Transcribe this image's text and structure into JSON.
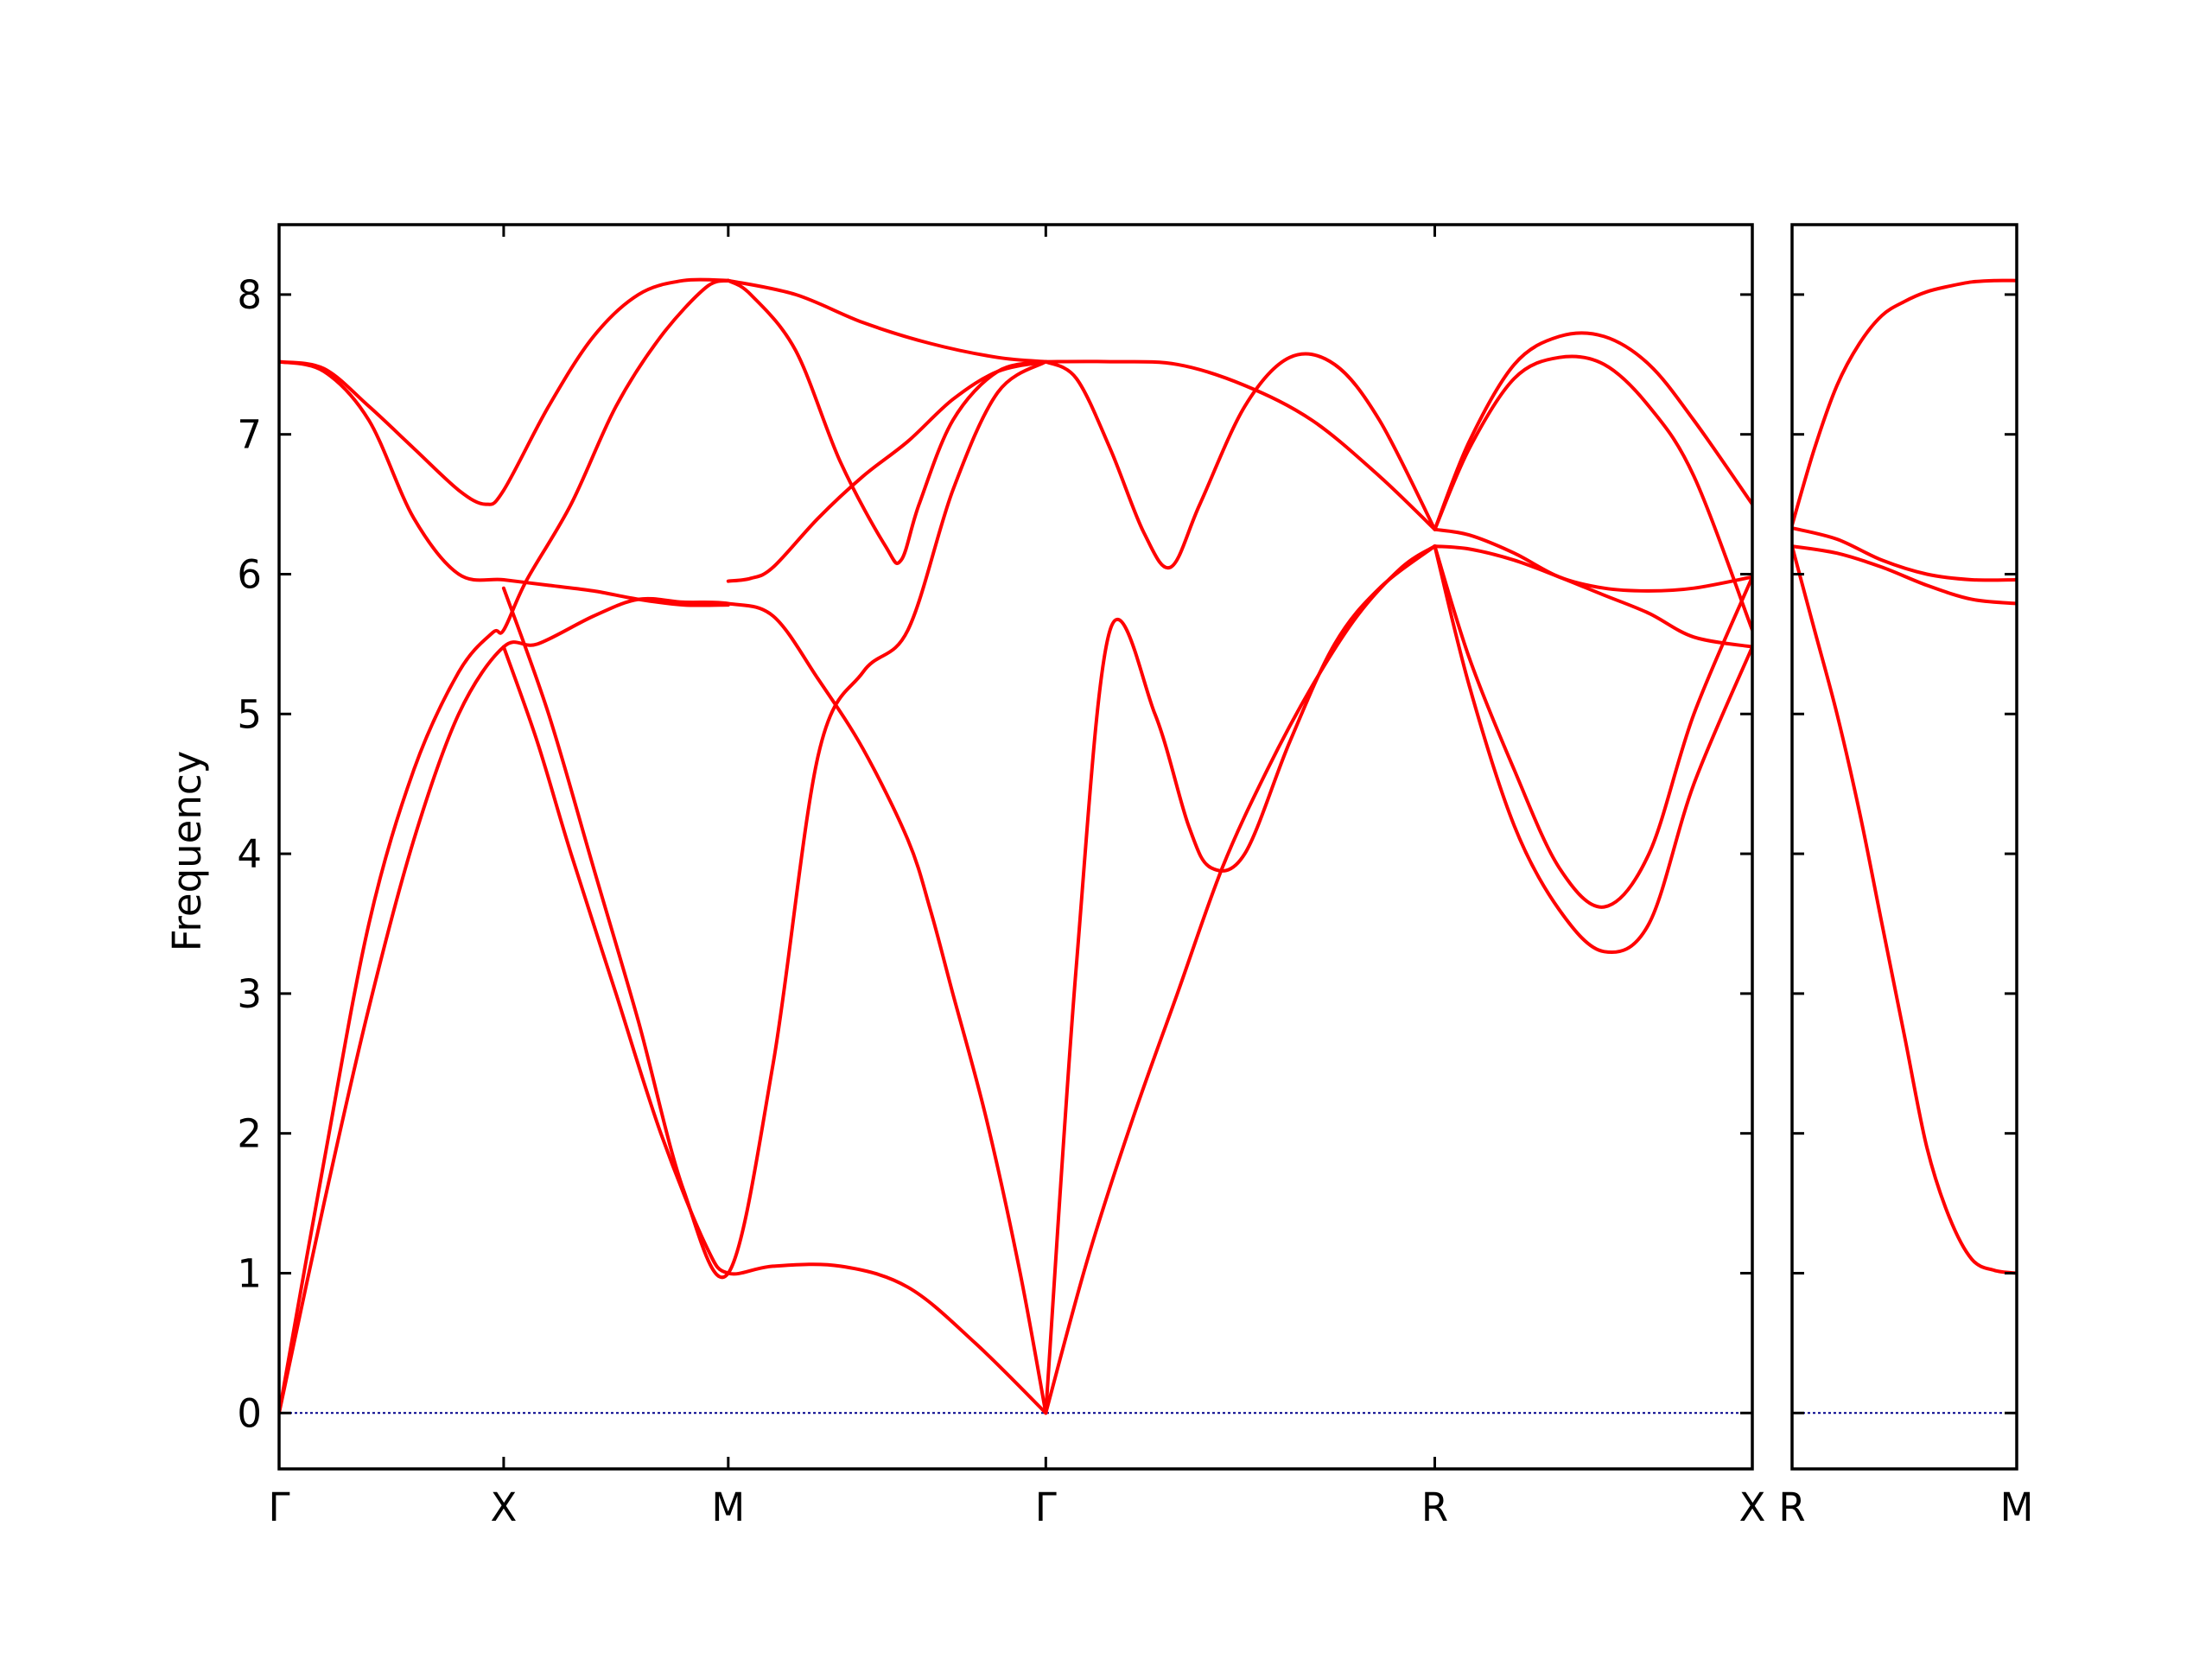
{
  "chart_data": {
    "type": "line",
    "ylabel": "Frequency",
    "ylim": [
      -0.4,
      8.5
    ],
    "yticks": [
      0,
      1,
      2,
      3,
      4,
      5,
      6,
      7,
      8
    ],
    "colors": {
      "bands": "#ff0000",
      "zero_line": "#00008b",
      "frame": "#000000"
    },
    "grid": false,
    "panels": [
      {
        "name": "main-panel",
        "xticks": [
          {
            "label": "Γ",
            "x": 0.0
          },
          {
            "label": "X",
            "x": 1.0
          },
          {
            "label": "M",
            "x": 2.0
          },
          {
            "label": "Γ",
            "x": 3.414
          },
          {
            "label": "R",
            "x": 5.146
          },
          {
            "label": "X",
            "x": 6.56
          }
        ],
        "series": [
          {
            "x": [
              0,
              0.2,
              0.4,
              0.6,
              0.8,
              1.0,
              1.15,
              1.4,
              1.6,
              1.8,
              2.0,
              2.2,
              2.4,
              2.6,
              2.8,
              2.9,
              3.0,
              3.15,
              3.3,
              3.414
            ],
            "y": [
              0,
              1.5,
              2.9,
              4.1,
              5.0,
              5.48,
              5.5,
              5.7,
              5.82,
              5.8,
              5.79,
              5.7,
              5.25,
              4.75,
              4.1,
              3.6,
              3.0,
              2.1,
              1.0,
              0
            ]
          },
          {
            "x": [
              0,
              0.2,
              0.4,
              0.6,
              0.8,
              0.95,
              1.0,
              1.1,
              1.3,
              1.5,
              1.7,
              1.9,
              2.0
            ],
            "y": [
              0,
              1.8,
              3.5,
              4.6,
              5.3,
              5.58,
              5.6,
              5.95,
              6.5,
              7.2,
              7.7,
              8.05,
              8.1
            ]
          },
          {
            "x": [
              0,
              0.2,
              0.4,
              0.6,
              0.8,
              1.0,
              1.2,
              1.4,
              1.6,
              1.8,
              2.0
            ],
            "y": [
              7.52,
              7.45,
              7.1,
              6.4,
              6.0,
              5.96,
              5.92,
              5.88,
              5.82,
              5.78,
              5.78
            ]
          },
          {
            "x": [
              0,
              0.2,
              0.4,
              0.6,
              0.8,
              0.92,
              1.0,
              1.2,
              1.4,
              1.6,
              1.8,
              2.0
            ],
            "y": [
              7.52,
              7.47,
              7.2,
              6.9,
              6.6,
              6.5,
              6.6,
              7.2,
              7.7,
              8.0,
              8.1,
              8.1
            ]
          },
          {
            "x": [
              1.0,
              1.15,
              1.3,
              1.5,
              1.7,
              1.9,
              2.0,
              2.2,
              2.5,
              2.8,
              3.1,
              3.414
            ],
            "y": [
              5.48,
              4.8,
              4.0,
              3.0,
              2.0,
              1.2,
              1.0,
              1.05,
              1.05,
              0.9,
              0.5,
              0
            ]
          },
          {
            "x": [
              1.0,
              1.2,
              1.4,
              1.6,
              1.8,
              2.0,
              2.2,
              2.4,
              2.6,
              2.8,
              3.0,
              3.2,
              3.414
            ],
            "y": [
              5.9,
              5.0,
              3.9,
              2.8,
              1.6,
              1.0,
              2.5,
              4.7,
              5.3,
              5.6,
              6.6,
              7.3,
              7.52
            ]
          },
          {
            "x": [
              2.0,
              2.1,
              2.3,
              2.5,
              2.7,
              2.77,
              2.85,
              3.0,
              3.2,
              3.414
            ],
            "y": [
              8.1,
              8.0,
              7.6,
              6.8,
              6.2,
              6.1,
              6.5,
              7.1,
              7.45,
              7.52
            ]
          },
          {
            "x": [
              2.0,
              2.1,
              2.2,
              2.4,
              2.6,
              2.8,
              3.0,
              3.2,
              3.414
            ],
            "y": [
              5.95,
              5.97,
              6.05,
              6.4,
              6.7,
              6.95,
              7.25,
              7.45,
              7.52
            ]
          },
          {
            "x": [
              2.0,
              2.3,
              2.6,
              2.9,
              3.2,
              3.414
            ],
            "y": [
              8.1,
              8.0,
              7.8,
              7.65,
              7.55,
              7.52
            ]
          },
          {
            "x": [
              3.414,
              3.6,
              3.8,
              4.0,
              4.2,
              4.4,
              4.6,
              4.8,
              5.0,
              5.146
            ],
            "y": [
              0,
              1.1,
              2.1,
              3.0,
              3.9,
              4.6,
              5.2,
              5.7,
              6.05,
              6.2
            ]
          },
          {
            "x": [
              3.414,
              3.55,
              3.7,
              3.9,
              4.05,
              4.15,
              4.3,
              4.5,
              4.7,
              4.9,
              5.146
            ],
            "y": [
              0,
              3.2,
              5.6,
              5.0,
              4.2,
              3.9,
              4.0,
              4.8,
              5.5,
              5.9,
              6.2
            ]
          },
          {
            "x": [
              3.414,
              3.55,
              3.7,
              3.85,
              3.97,
              4.1,
              4.3,
              4.5,
              4.7,
              4.9,
              5.146
            ],
            "y": [
              7.52,
              7.4,
              6.9,
              6.3,
              6.05,
              6.5,
              7.2,
              7.55,
              7.5,
              7.1,
              6.32
            ]
          },
          {
            "x": [
              3.414,
              3.7,
              4.0,
              4.3,
              4.6,
              4.9,
              5.146
            ],
            "y": [
              7.52,
              7.52,
              7.5,
              7.35,
              7.1,
              6.7,
              6.32
            ]
          },
          {
            "x": [
              5.146,
              5.3,
              5.5,
              5.7,
              5.9,
              6.1,
              6.3,
              6.56
            ],
            "y": [
              6.2,
              5.2,
              4.2,
              3.6,
              3.3,
              3.5,
              4.5,
              5.48
            ]
          },
          {
            "x": [
              5.146,
              5.3,
              5.5,
              5.7,
              5.9,
              6.1,
              6.3,
              6.56
            ],
            "y": [
              6.2,
              5.4,
              4.6,
              3.9,
              3.62,
              4.0,
              5.0,
              5.98
            ]
          },
          {
            "x": [
              5.146,
              5.3,
              5.5,
              5.7,
              5.9,
              6.1,
              6.3,
              6.56
            ],
            "y": [
              6.2,
              6.18,
              6.1,
              5.98,
              5.85,
              5.72,
              5.55,
              5.48
            ]
          },
          {
            "x": [
              5.146,
              5.3,
              5.5,
              5.7,
              5.9,
              6.1,
              6.3,
              6.56
            ],
            "y": [
              6.32,
              6.28,
              6.15,
              5.98,
              5.9,
              5.88,
              5.9,
              5.98
            ]
          },
          {
            "x": [
              5.146,
              5.3,
              5.5,
              5.7,
              5.9,
              6.1,
              6.3,
              6.56
            ],
            "y": [
              6.32,
              6.9,
              7.4,
              7.55,
              7.5,
              7.2,
              6.7,
              5.6
            ]
          },
          {
            "x": [
              5.146,
              5.3,
              5.5,
              5.7,
              5.9,
              6.1,
              6.3,
              6.56
            ],
            "y": [
              6.32,
              6.95,
              7.5,
              7.7,
              7.7,
              7.5,
              7.1,
              6.5
            ]
          }
        ]
      },
      {
        "name": "side-panel",
        "xticks": [
          {
            "label": "R",
            "x": 0.0
          },
          {
            "label": "M",
            "x": 1.0
          }
        ],
        "series": [
          {
            "x": [
              0,
              0.1,
              0.2,
              0.3,
              0.4,
              0.5,
              0.6,
              0.7,
              0.8,
              0.9,
              1.0
            ],
            "y": [
              6.35,
              6.9,
              7.35,
              7.65,
              7.85,
              7.95,
              8.02,
              8.06,
              8.09,
              8.1,
              8.1
            ]
          },
          {
            "x": [
              0,
              0.2,
              0.4,
              0.6,
              0.8,
              1.0
            ],
            "y": [
              6.33,
              6.25,
              6.1,
              6.0,
              5.96,
              5.96
            ]
          },
          {
            "x": [
              0,
              0.2,
              0.4,
              0.6,
              0.8,
              1.0
            ],
            "y": [
              6.2,
              6.15,
              6.05,
              5.92,
              5.82,
              5.79
            ]
          },
          {
            "x": [
              0,
              0.1,
              0.2,
              0.3,
              0.4,
              0.5,
              0.6,
              0.7,
              0.8,
              0.9,
              1.0
            ],
            "y": [
              6.2,
              5.6,
              5.0,
              4.3,
              3.5,
              2.7,
              1.9,
              1.4,
              1.1,
              1.02,
              1.0
            ]
          }
        ]
      }
    ]
  }
}
